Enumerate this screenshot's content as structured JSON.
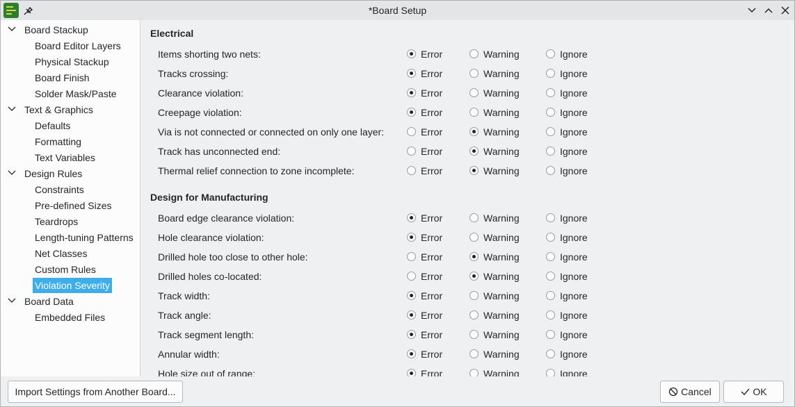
{
  "window": {
    "title": "*Board Setup"
  },
  "tree": [
    {
      "label": "Board Stackup",
      "children": [
        {
          "label": "Board Editor Layers"
        },
        {
          "label": "Physical Stackup"
        },
        {
          "label": "Board Finish"
        },
        {
          "label": "Solder Mask/Paste"
        }
      ]
    },
    {
      "label": "Text & Graphics",
      "children": [
        {
          "label": "Defaults"
        },
        {
          "label": "Formatting"
        },
        {
          "label": "Text Variables"
        }
      ]
    },
    {
      "label": "Design Rules",
      "children": [
        {
          "label": "Constraints"
        },
        {
          "label": "Pre-defined Sizes"
        },
        {
          "label": "Teardrops"
        },
        {
          "label": "Length-tuning Patterns"
        },
        {
          "label": "Net Classes"
        },
        {
          "label": "Custom Rules"
        },
        {
          "label": "Violation Severity",
          "selected": true
        }
      ]
    },
    {
      "label": "Board Data",
      "children": [
        {
          "label": "Embedded Files"
        }
      ]
    }
  ],
  "severity_options": [
    "Error",
    "Warning",
    "Ignore"
  ],
  "sections": [
    {
      "heading": "Electrical",
      "rows": [
        {
          "label": "Items shorting two nets:",
          "severity": "Error"
        },
        {
          "label": "Tracks crossing:",
          "severity": "Error"
        },
        {
          "label": "Clearance violation:",
          "severity": "Error"
        },
        {
          "label": "Creepage violation:",
          "severity": "Error"
        },
        {
          "label": "Via is not connected or connected on only one layer:",
          "severity": "Warning"
        },
        {
          "label": "Track has unconnected end:",
          "severity": "Warning"
        },
        {
          "label": "Thermal relief connection to zone incomplete:",
          "severity": "Warning"
        }
      ]
    },
    {
      "heading": "Design for Manufacturing",
      "rows": [
        {
          "label": "Board edge clearance violation:",
          "severity": "Error"
        },
        {
          "label": "Hole clearance violation:",
          "severity": "Error"
        },
        {
          "label": "Drilled hole too close to other hole:",
          "severity": "Warning"
        },
        {
          "label": "Drilled holes co-located:",
          "severity": "Warning"
        },
        {
          "label": "Track width:",
          "severity": "Error"
        },
        {
          "label": "Track angle:",
          "severity": "Error"
        },
        {
          "label": "Track segment length:",
          "severity": "Error"
        },
        {
          "label": "Annular width:",
          "severity": "Error"
        },
        {
          "label": "Hole size out of range:",
          "severity": "Error"
        }
      ]
    }
  ],
  "buttons": {
    "import": "Import Settings from Another Board...",
    "cancel": "Cancel",
    "ok": "OK"
  }
}
